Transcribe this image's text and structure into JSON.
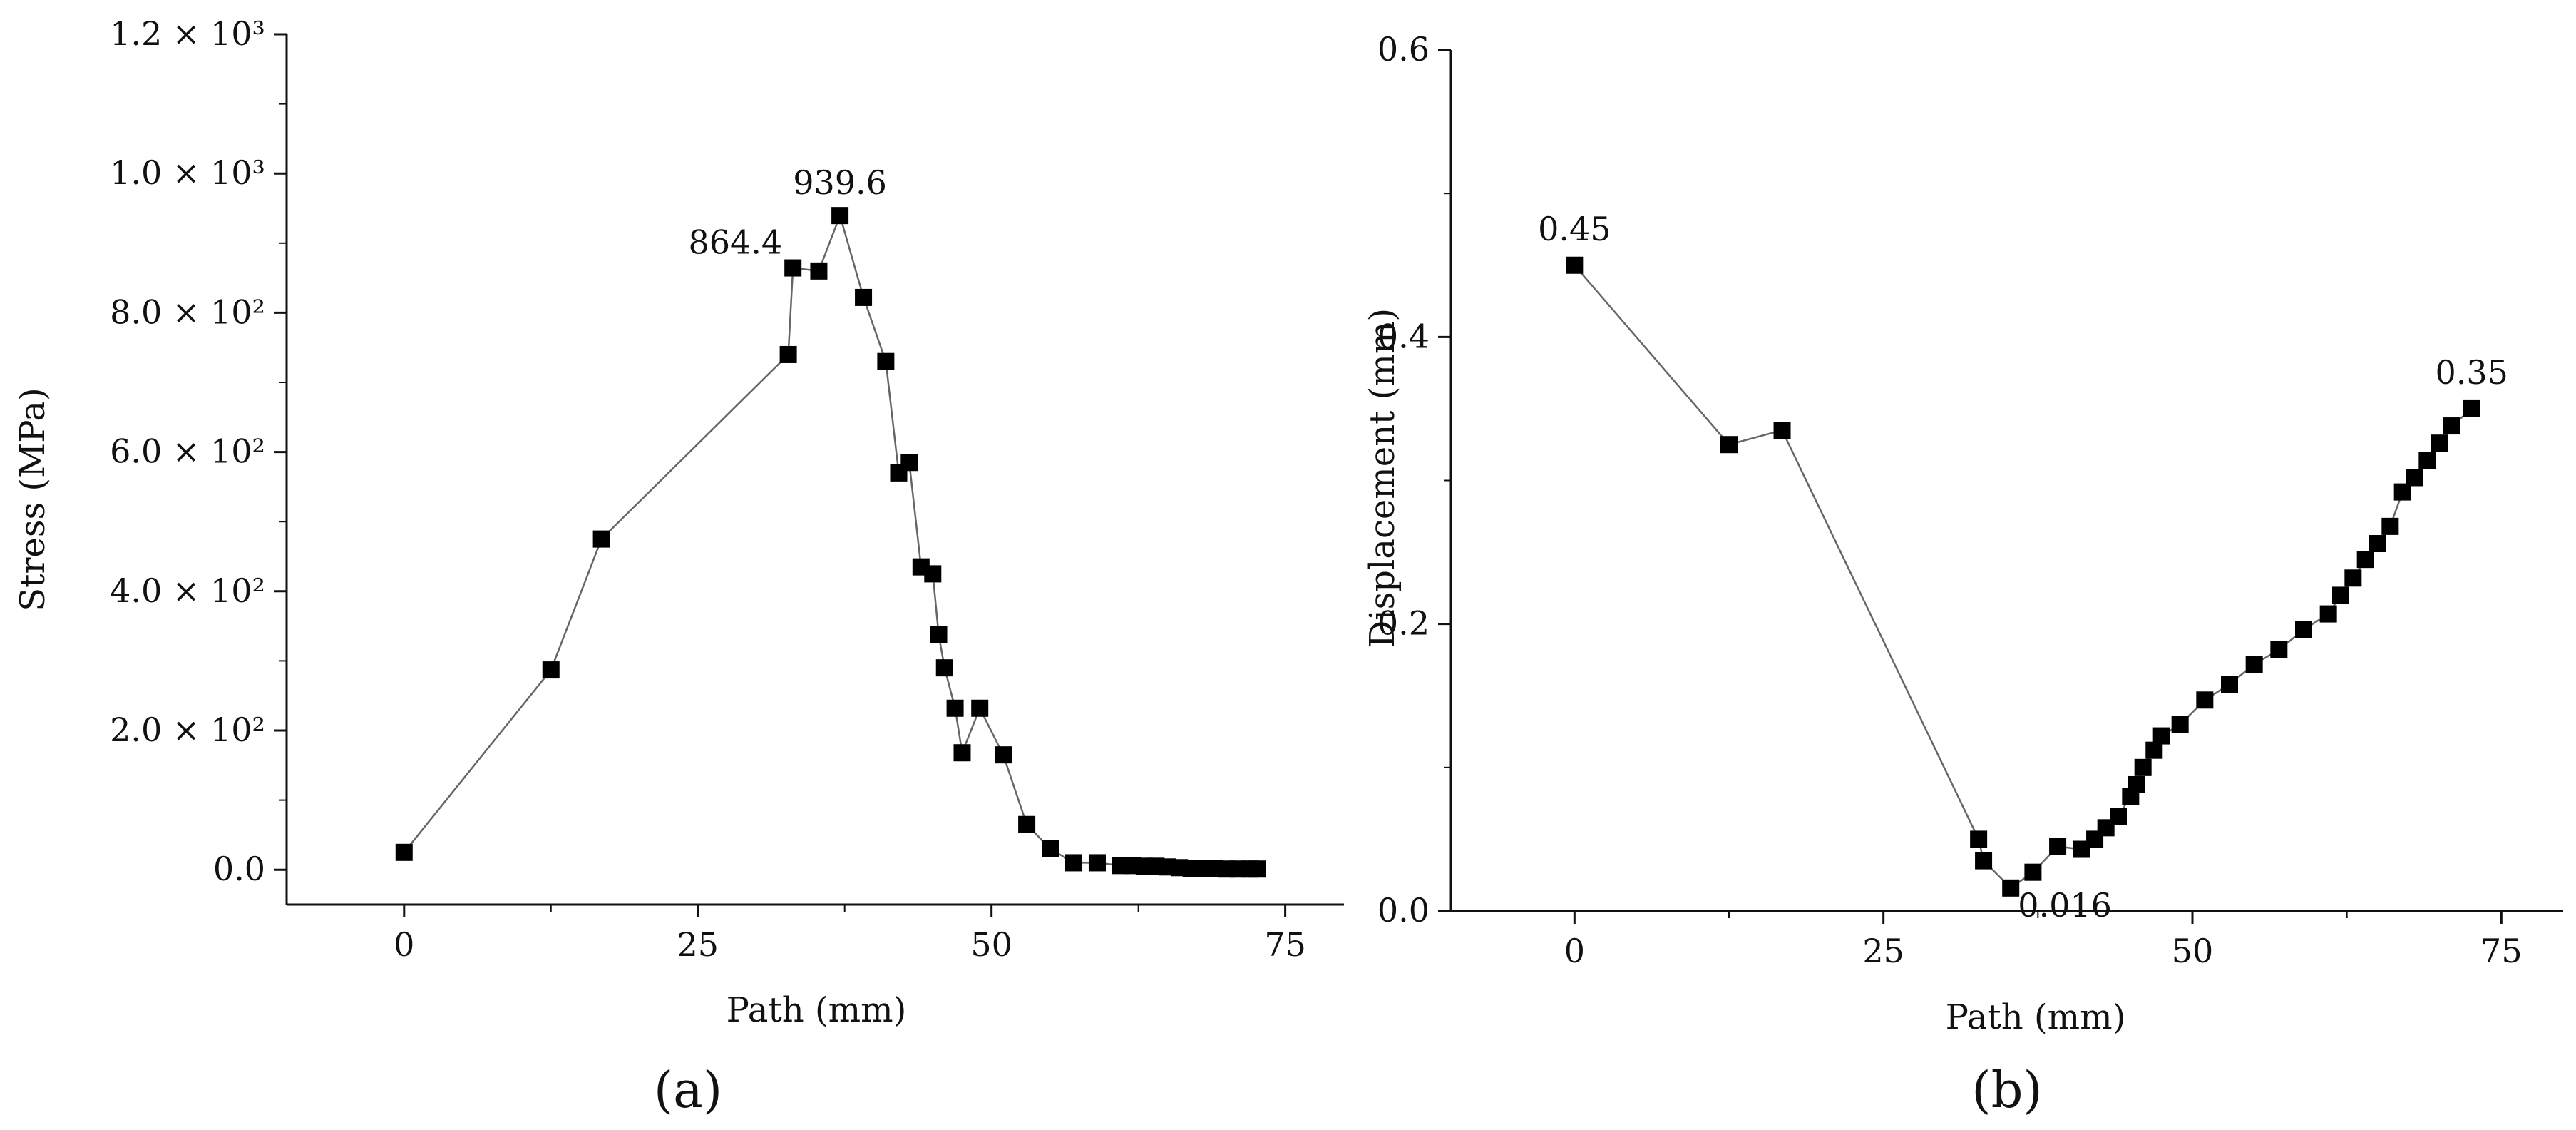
{
  "chart_data": [
    {
      "type": "line",
      "panel_label": "(a)",
      "xlabel": "Path (mm)",
      "ylabel": "Stress (MPa)",
      "xlim": [
        -10,
        80
      ],
      "ylim": [
        -50,
        1200
      ],
      "x_ticks": [
        0,
        25,
        50,
        75
      ],
      "x_tick_labels": [
        "0",
        "25",
        "50",
        "75"
      ],
      "y_ticks": [
        0,
        200,
        400,
        600,
        800,
        1000,
        1200
      ],
      "y_tick_labels": [
        "0.0",
        "2.0 × 10²",
        "4.0 × 10²",
        "6.0 × 10²",
        "8.0 × 10²",
        "1.0 × 10³",
        "1.2 × 10³"
      ],
      "series": [
        {
          "x": [
            0,
            12.5,
            16.8,
            32.7,
            33.1,
            35.3,
            37.1,
            39.1,
            41.0,
            42.1,
            43.0,
            44.0,
            45.0,
            45.5,
            46.0,
            46.9,
            47.5,
            49.0,
            51.0,
            53.0,
            55.0,
            57.0,
            59.0,
            61.0,
            62.0,
            63.0,
            64.0,
            65.0,
            66.0,
            67.0,
            68.0,
            69.0,
            70.0,
            71.0,
            72.0,
            72.6
          ],
          "y": [
            25,
            287,
            475,
            740,
            864.4,
            860,
            939.6,
            822,
            730,
            570,
            585,
            435,
            425,
            338,
            290,
            232,
            168,
            232,
            165,
            65,
            30,
            10,
            10,
            6,
            6,
            5,
            5,
            4,
            3,
            2,
            2,
            2,
            1,
            1,
            1,
            1
          ]
        }
      ],
      "annotations": [
        {
          "text": "864.4",
          "x": 33.1,
          "y": 864.4
        },
        {
          "text": "939.6",
          "x": 37.1,
          "y": 939.6
        }
      ]
    },
    {
      "type": "line",
      "panel_label": "(b)",
      "xlabel": "Path (mm)",
      "ylabel": "Displacement (mm)",
      "xlim": [
        -10,
        80
      ],
      "ylim": [
        0,
        0.6
      ],
      "x_ticks": [
        0,
        25,
        50,
        75
      ],
      "x_tick_labels": [
        "0",
        "25",
        "50",
        "75"
      ],
      "y_ticks": [
        0,
        0.2,
        0.4,
        0.6
      ],
      "y_tick_labels": [
        "0.0",
        "0.2",
        "0.4",
        "0.6"
      ],
      "series": [
        {
          "x": [
            0,
            12.5,
            16.8,
            32.7,
            33.1,
            35.3,
            37.1,
            39.1,
            41.0,
            42.1,
            43.0,
            44.0,
            45.0,
            45.5,
            46.0,
            46.9,
            47.5,
            49.0,
            51.0,
            53.0,
            55.0,
            57.0,
            59.0,
            61.0,
            62.0,
            63.0,
            64.0,
            65.0,
            66.0,
            67.0,
            68.0,
            69.0,
            70.0,
            71.0,
            72.6
          ],
          "y": [
            0.45,
            0.325,
            0.335,
            0.05,
            0.035,
            0.016,
            0.027,
            0.045,
            0.043,
            0.05,
            0.058,
            0.066,
            0.08,
            0.088,
            0.1,
            0.112,
            0.122,
            0.13,
            0.147,
            0.158,
            0.172,
            0.182,
            0.196,
            0.207,
            0.22,
            0.232,
            0.245,
            0.256,
            0.268,
            0.292,
            0.302,
            0.314,
            0.326,
            0.338,
            0.35
          ]
        }
      ],
      "annotations": [
        {
          "text": "0.45",
          "x": 0,
          "y": 0.45
        },
        {
          "text": "0.016",
          "x": 35.3,
          "y": 0.016
        },
        {
          "text": "0.35",
          "x": 72.6,
          "y": 0.35
        }
      ]
    }
  ]
}
